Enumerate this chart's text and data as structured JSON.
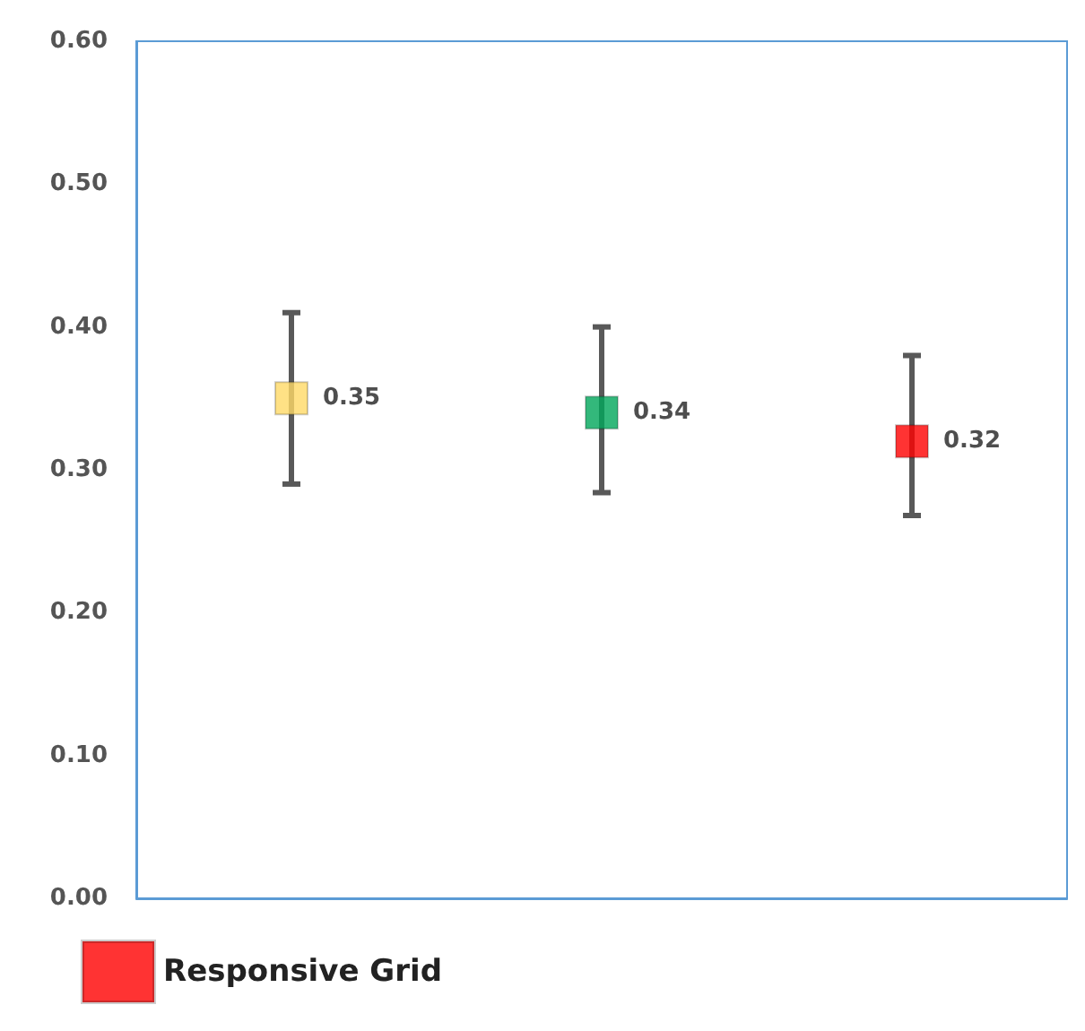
{
  "chart_data": {
    "type": "scatter",
    "categories": [
      null,
      null,
      null
    ],
    "series": [
      {
        "color": "#ffd966",
        "values": [
          0.35,
          null,
          null
        ],
        "errors": [
          [
            0.29,
            0.41
          ],
          null,
          null
        ]
      },
      {
        "color": "#00a65a",
        "values": [
          null,
          0.34,
          null
        ],
        "errors": [
          null,
          [
            0.284,
            0.4
          ],
          null
        ]
      },
      {
        "name": "Responsive Grid",
        "color": "#ff0000",
        "values": [
          null,
          null,
          0.32
        ],
        "errors": [
          null,
          null,
          [
            0.268,
            0.38
          ]
        ]
      }
    ],
    "ylim": [
      0,
      0.6
    ],
    "yticks": [
      {
        "value": 0,
        "label": "0.00"
      },
      {
        "value": 0.1,
        "label": "0.10"
      },
      {
        "value": 0.2,
        "label": "0.20"
      },
      {
        "value": 0.3,
        "label": "0.30"
      },
      {
        "value": 0.4,
        "label": "0.40"
      },
      {
        "value": 0.5,
        "label": "0.50"
      },
      {
        "value": 0.6,
        "label": "0.60"
      }
    ],
    "marker": "square",
    "data_labels": true,
    "legend": "bottom left",
    "grid": false
  }
}
